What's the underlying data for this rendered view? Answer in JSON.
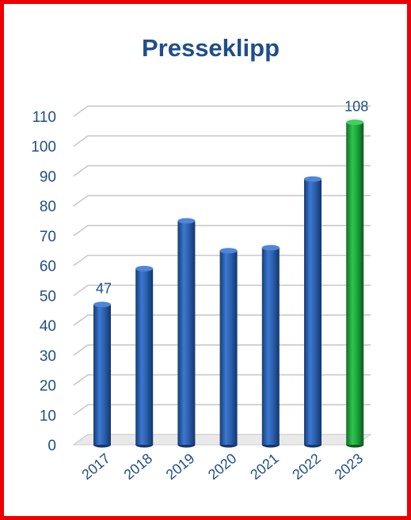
{
  "chart_data": {
    "type": "bar",
    "title": "Presseklipp",
    "xlabel": "",
    "ylabel": "",
    "categories": [
      "2017",
      "2018",
      "2019",
      "2020",
      "2021",
      "2022",
      "2023"
    ],
    "values": [
      47,
      59,
      75,
      65,
      66,
      89,
      108
    ],
    "data_labels": [
      "47",
      "",
      "",
      "",
      "",
      "",
      "108"
    ],
    "ylim": [
      0,
      110
    ],
    "yticks": [
      0,
      10,
      20,
      30,
      40,
      50,
      60,
      70,
      80,
      90,
      100,
      110
    ],
    "grid": true,
    "legend": "none",
    "style": "3d-cylinder",
    "colors": {
      "title": "#1f4e89",
      "tick_text": "#1f4e89",
      "bar_default": "#2e64b8",
      "bar_highlight": "#1faa3c",
      "gridline": "#c9c9c9",
      "border": "#ee0000"
    },
    "highlight_index": 6
  }
}
